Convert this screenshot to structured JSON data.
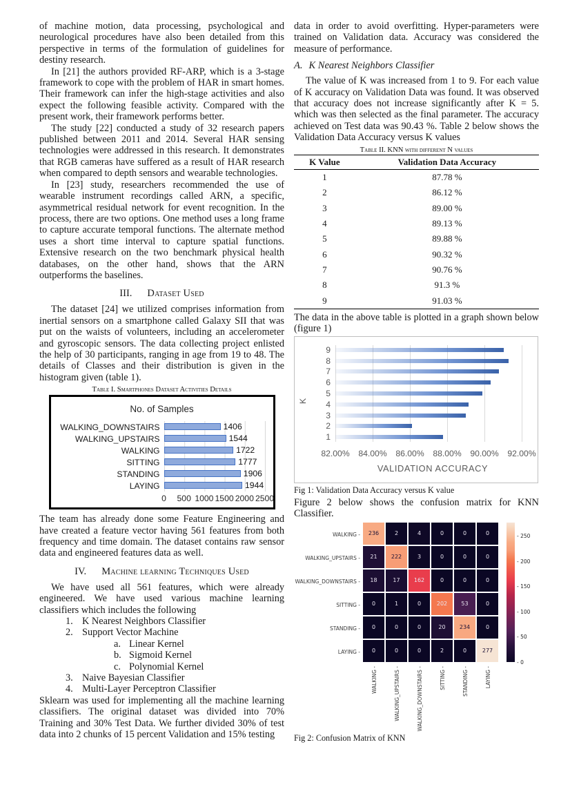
{
  "left": {
    "p1": "of machine motion, data processing, psychological and neurological procedures have also been detailed from this perspective in terms of the formulation of guidelines for destiny research.",
    "p2": "In [21] the authors provided RF-ARP, which is a 3-stage framework to cope with the problem of HAR in smart homes. Their framework can infer the high-stage activities and also expect the following feasible activity. Compared with the present work, their framework performs better.",
    "p3": "The study [22] conducted a study of 32 research papers published between 2011 and 2014. Several HAR sensing technologies were addressed in this research. It demonstrates that RGB cameras have suffered as a result of HAR research when compared to depth sensors and wearable technologies.",
    "p4": "In [23] study, researchers recommended the use of wearable instrument recordings called ARN, a specific, asymmetrical residual network for event recognition. In the process, there are two options. One method uses a long frame to capture accurate temporal functions. The alternate method uses a short time interval to capture spatial functions. Extensive research on the two benchmark physical health databases, on the other hand, shows that the ARN outperforms the baselines.",
    "sec3_num": "III.",
    "sec3_title": "Dataset Used",
    "p5": "The dataset [24] we utilized comprises information from inertial sensors on a smartphone called Galaxy SII that was put on the waists of volunteers, including an accelerometer and gyroscopic sensors. The data collecting project enlisted the help of 30 participants, ranging in age from 19 to 48. The details of Classes and their distribution is given in the histogram given (table 1).",
    "table1_caption": "Table I. Smartphones Dataset Activities Details",
    "p6": "The team has already done some Feature Engineering and have created a feature vector having 561 features from both frequency and time domain. The dataset contains raw sensor data and engineered features data as well.",
    "sec4_num": "IV.",
    "sec4_title": "Machine learning Techniques Used",
    "p7": "We have used all 561 features, which were already engineered. We have used various machine learning classifiers which includes the following",
    "list": [
      {
        "label": "1.",
        "text": "K Nearest Neighbors Classifier"
      },
      {
        "label": "2.",
        "text": "Support Vector Machine",
        "children": [
          {
            "label": "a.",
            "text": "Linear Kernel"
          },
          {
            "label": "b.",
            "text": "Sigmoid Kernel"
          },
          {
            "label": "c.",
            "text": "Polynomial Kernel"
          }
        ]
      },
      {
        "label": "3.",
        "text": "Naive Bayesian Classifier"
      },
      {
        "label": "4.",
        "text": "Multi-Layer Perceptron Classifier"
      }
    ],
    "p8": "Sklearn was used for implementing all the machine learning classifiers. The original dataset was divided into 70% Training and 30% Test Data. We further divided 30% of test data into 2 chunks of 15 percent Validation and 15% testing"
  },
  "right": {
    "p1": "data in order to avoid overfitting.  Hyper-parameters were trained on Validation data. Accuracy was considered the measure of performance.",
    "secA_label": "A.",
    "secA_title": "K Nearest Neighbors Classifier",
    "p2": "The value of K was increased from 1 to 9. For each value of K accuracy on Validation Data was found. It was observed that accuracy does not increase significantly after K = 5. which was then selected as the final parameter. The accuracy achieved on Test data was 90.43 %. Table 2 below shows the Validation Data Accuracy versus K values",
    "table2_caption": "Table II. KNN with different N values",
    "table2": {
      "headers": [
        "K Value",
        "Validation Data Accuracy"
      ],
      "rows": [
        [
          "1",
          "87.78 %"
        ],
        [
          "2",
          "86.12 %"
        ],
        [
          "3",
          "89.00 %"
        ],
        [
          "4",
          "89.13 %"
        ],
        [
          "5",
          "89.88 %"
        ],
        [
          "6",
          "90.32 %"
        ],
        [
          "7",
          "90.76 %"
        ],
        [
          "8",
          "91.3 %"
        ],
        [
          "9",
          "91.03 %"
        ]
      ]
    },
    "p3": "The data in the above table is plotted in a graph shown below (figure 1)",
    "fig1_caption": "Fig 1: Validation Data Accuracy versus  K value",
    "p4": "Figure 2 below shows the confusion matrix for KNN Classifier.",
    "fig2_caption": "Fig 2: Confusion Matrix of KNN"
  },
  "chart_data": [
    {
      "id": "samples-bar-chart",
      "type": "bar",
      "orientation": "horizontal",
      "title": "No. of Samples",
      "categories": [
        "WALKING_DOWNSTAIRS",
        "WALKING_UPSTAIRS",
        "WALKING",
        "SITTING",
        "STANDING",
        "LAYING"
      ],
      "values": [
        1406,
        1544,
        1722,
        1777,
        1906,
        1944
      ],
      "xlim": [
        0,
        2500
      ],
      "xticks": [
        "0",
        "500",
        "1000",
        "1500",
        "2000",
        "2500"
      ],
      "bar_fill": "#8faadc",
      "bar_border": "#4472c4",
      "grid": true
    },
    {
      "id": "knn-accuracy-chart",
      "type": "bar",
      "orientation": "horizontal",
      "title": "",
      "ylabel": "K",
      "xlabel": "VALIDATION ACCURACY",
      "categories": [
        "9",
        "8",
        "7",
        "6",
        "5",
        "4",
        "3",
        "2",
        "1"
      ],
      "values": [
        91.03,
        91.3,
        90.76,
        90.32,
        89.88,
        89.13,
        89.0,
        86.12,
        87.78
      ],
      "xlim": [
        82,
        92.4
      ],
      "xticks": [
        "82.00%",
        "84.00%",
        "86.00%",
        "88.00%",
        "90.00%",
        "92.00%"
      ],
      "xtick_values": [
        82,
        84,
        86,
        88,
        90,
        92
      ],
      "bar_color_end": "#3a62a9",
      "grid": true
    },
    {
      "id": "knn-confusion-matrix",
      "type": "heatmap",
      "labels": [
        "WALKING",
        "WALKING_UPSTAIRS",
        "WALKING_DOWNSTAIRS",
        "SITTING",
        "STANDING",
        "LAYING"
      ],
      "matrix": [
        [
          236,
          2,
          4,
          0,
          0,
          0
        ],
        [
          21,
          222,
          3,
          0,
          0,
          0
        ],
        [
          18,
          17,
          162,
          0,
          0,
          0
        ],
        [
          0,
          1,
          0,
          202,
          53,
          0
        ],
        [
          0,
          0,
          0,
          20,
          234,
          0
        ],
        [
          0,
          0,
          0,
          2,
          0,
          277
        ]
      ],
      "vmin": 0,
      "vmax": 277,
      "colorbar_ticks": [
        0,
        50,
        100,
        150,
        200,
        250
      ],
      "colormap": "rocket"
    }
  ]
}
